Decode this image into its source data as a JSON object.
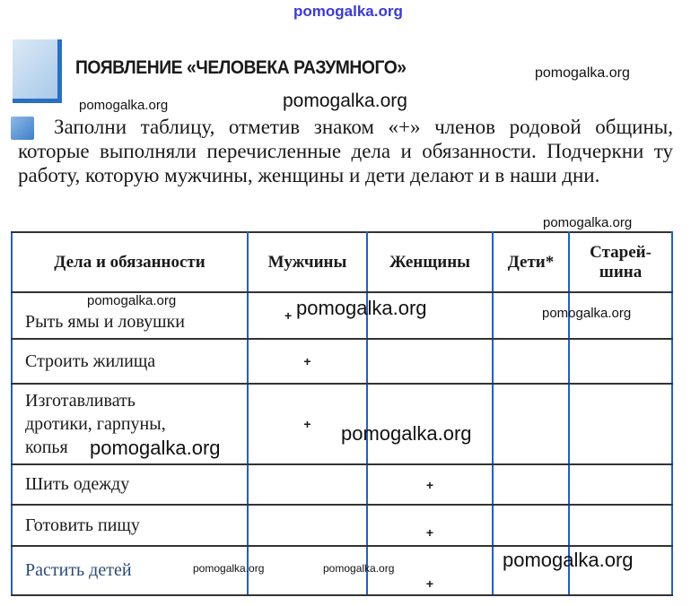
{
  "title": "ПОЯВЛЕНИЕ «ЧЕЛОВЕКА РАЗУМНОГО»",
  "task_text": "Заполни таблицу, отметив знаком «+» членов родовой общины, которые выполняли перечисленные дела и обязанности. Подчеркни ту работу, которую мужчины, женщины и дети делают и в наши дни.",
  "table": {
    "headers": [
      "Дела и обязанности",
      "Мужчины",
      "Женщины",
      "Дети*",
      "Старей-шина"
    ],
    "rows": [
      {
        "task": "Рыть ямы и ловушки",
        "marks": [
          "+",
          "",
          "",
          ""
        ]
      },
      {
        "task": "Строить жилища",
        "marks": [
          "+",
          "",
          "",
          ""
        ]
      },
      {
        "task": "Изготавливать дротики, гарпуны, копья",
        "marks": [
          "+",
          "",
          "",
          ""
        ]
      },
      {
        "task": "Шить одежду",
        "marks": [
          "",
          "+",
          "",
          ""
        ]
      },
      {
        "task": "Готовить пищу",
        "marks": [
          "",
          "+",
          "",
          ""
        ]
      },
      {
        "task": "Растить детей",
        "marks": [
          "",
          "+",
          "",
          ""
        ]
      }
    ]
  },
  "watermark": "pomogalka.org",
  "colors": {
    "accent": "#2a6fc4",
    "grid": "#2360c0",
    "watermark_top": "#3a3ad0"
  },
  "icons": [
    "section-bar-icon",
    "task-pencil-icon"
  ]
}
